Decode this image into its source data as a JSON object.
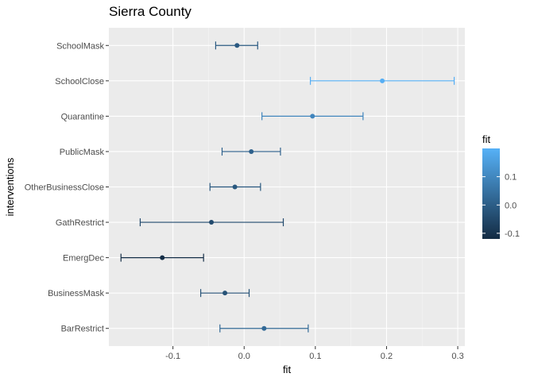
{
  "chart_data": {
    "type": "scatter",
    "subtype": "point-range",
    "title": "Sierra County",
    "xlabel": "fit",
    "ylabel": "interventions",
    "xlim": [
      -0.19,
      0.31
    ],
    "x_ticks": [
      -0.1,
      0.0,
      0.1,
      0.2,
      0.3
    ],
    "x_tick_labels": [
      "-0.1",
      "0.0",
      "0.1",
      "0.2",
      "0.3"
    ],
    "grid": true,
    "legend": {
      "title": "fit",
      "position": "right",
      "type": "colorbar",
      "range": [
        -0.12,
        0.2
      ],
      "ticks": [
        0.1,
        0.0,
        -0.1
      ],
      "tick_labels": [
        "0.1",
        "0.0",
        "-0.1"
      ],
      "low_color": "#132b43",
      "high_color": "#56b1f7"
    },
    "categories": [
      "SchoolMask",
      "SchoolClose",
      "Quarantine",
      "PublicMask",
      "OtherBusinessClose",
      "GathRestrict",
      "EmergDec",
      "BusinessMask",
      "BarRestrict"
    ],
    "points": [
      {
        "label": "SchoolMask",
        "fit": -0.01,
        "lower": -0.04,
        "upper": 0.019
      },
      {
        "label": "SchoolClose",
        "fit": 0.194,
        "lower": 0.093,
        "upper": 0.295
      },
      {
        "label": "Quarantine",
        "fit": 0.096,
        "lower": 0.025,
        "upper": 0.167
      },
      {
        "label": "PublicMask",
        "fit": 0.01,
        "lower": -0.031,
        "upper": 0.051
      },
      {
        "label": "OtherBusinessClose",
        "fit": -0.013,
        "lower": -0.048,
        "upper": 0.023
      },
      {
        "label": "GathRestrict",
        "fit": -0.046,
        "lower": -0.146,
        "upper": 0.055
      },
      {
        "label": "EmergDec",
        "fit": -0.115,
        "lower": -0.173,
        "upper": -0.057
      },
      {
        "label": "BusinessMask",
        "fit": -0.027,
        "lower": -0.061,
        "upper": 0.007
      },
      {
        "label": "BarRestrict",
        "fit": 0.028,
        "lower": -0.034,
        "upper": 0.09
      }
    ]
  }
}
